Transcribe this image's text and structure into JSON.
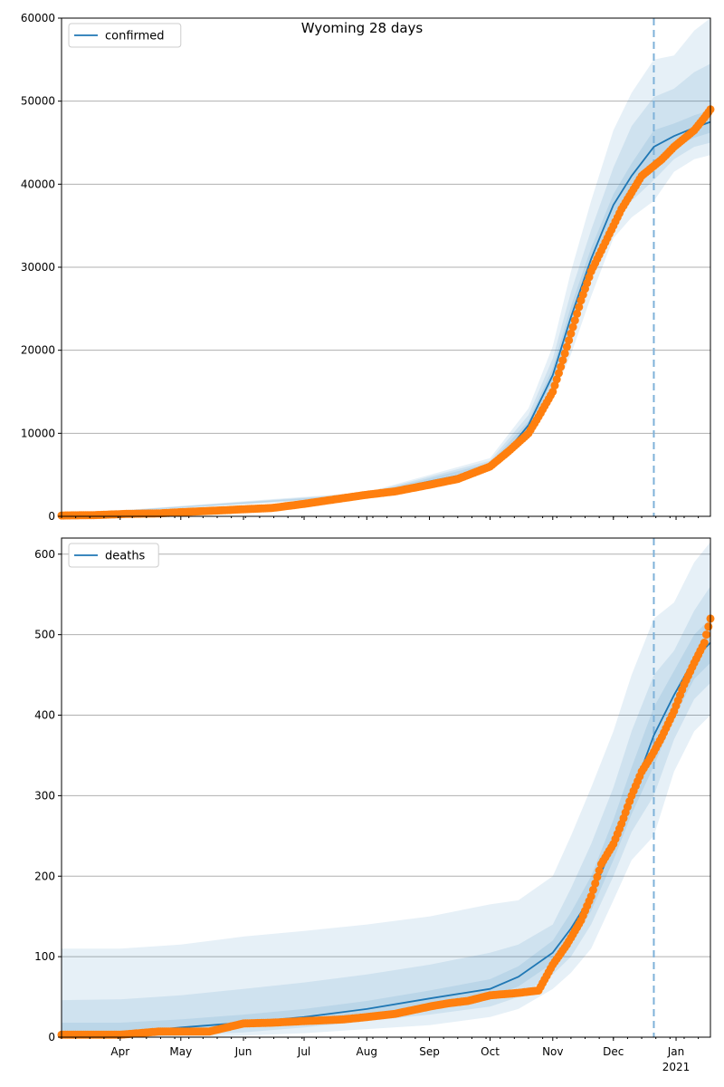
{
  "title": "Wyoming 28 days",
  "colors": {
    "model": "#1f77b4",
    "observed": "#ff7f0e",
    "band": "#1f77b4",
    "grid": "#b0b0b0",
    "forecast_line": "#7fb2d9"
  },
  "chart_data": [
    {
      "type": "line",
      "name": "confirmed-panel",
      "legend": "confirmed",
      "legend_position": "upper-left",
      "grid": "y-only",
      "x_range": [
        "2020-03-03",
        "2021-01-18"
      ],
      "ylim": [
        0,
        60000
      ],
      "yticks": [
        0,
        10000,
        20000,
        30000,
        40000,
        50000,
        60000
      ],
      "forecast_start": "2020-12-21",
      "model": {
        "x": [
          "2020-03-03",
          "2020-04-01",
          "2020-05-01",
          "2020-06-01",
          "2020-07-01",
          "2020-08-01",
          "2020-09-01",
          "2020-09-15",
          "2020-10-01",
          "2020-10-10",
          "2020-10-20",
          "2020-11-01",
          "2020-11-10",
          "2020-11-20",
          "2020-11-25",
          "2020-12-01",
          "2020-12-10",
          "2020-12-21",
          "2020-12-31",
          "2021-01-10",
          "2021-01-18"
        ],
        "y": [
          150,
          250,
          450,
          800,
          1400,
          2600,
          4200,
          4900,
          6200,
          8000,
          11000,
          17000,
          24000,
          31000,
          34000,
          37500,
          41000,
          44500,
          45800,
          46800,
          47500
        ]
      },
      "bands": [
        {
          "x": [
            "2020-03-03",
            "2020-08-01",
            "2020-10-01",
            "2020-10-20",
            "2020-11-01",
            "2020-11-10",
            "2020-11-20",
            "2020-12-01",
            "2020-12-10",
            "2020-12-21",
            "2020-12-31",
            "2021-01-10",
            "2021-01-18"
          ],
          "lower": [
            100,
            2300,
            5500,
            9500,
            14500,
            19500,
            26500,
            33500,
            36000,
            38000,
            41500,
            43000,
            43500
          ],
          "upper": [
            200,
            2900,
            7000,
            13000,
            20500,
            29500,
            38000,
            46500,
            51000,
            55000,
            55500,
            58500,
            60000
          ]
        },
        {
          "x": [
            "2020-03-03",
            "2020-08-01",
            "2020-10-01",
            "2020-10-20",
            "2020-11-01",
            "2020-11-10",
            "2020-11-20",
            "2020-12-01",
            "2020-12-10",
            "2020-12-21",
            "2020-12-31",
            "2021-01-10",
            "2021-01-18"
          ],
          "lower": [
            120,
            2400,
            5800,
            10000,
            15500,
            21500,
            28500,
            35000,
            38000,
            40500,
            43000,
            44500,
            45000
          ],
          "upper": [
            180,
            2800,
            6700,
            12200,
            19000,
            27000,
            34500,
            42000,
            47000,
            50500,
            51500,
            53500,
            54500
          ]
        },
        {
          "x": [
            "2020-03-03",
            "2020-08-01",
            "2020-10-01",
            "2020-10-20",
            "2020-11-01",
            "2020-11-10",
            "2020-11-20",
            "2020-12-01",
            "2020-12-10",
            "2020-12-21",
            "2020-12-31",
            "2021-01-10",
            "2021-01-18"
          ],
          "lower": [
            135,
            2500,
            6000,
            10500,
            16200,
            22800,
            29700,
            36200,
            39500,
            42500,
            44400,
            45600,
            46200
          ],
          "upper": [
            165,
            2700,
            6400,
            11500,
            17900,
            25300,
            32300,
            38800,
            42500,
            46500,
            47300,
            48300,
            48900
          ]
        }
      ],
      "observed": {
        "x": [
          "2020-03-03",
          "2020-03-20",
          "2020-04-05",
          "2020-04-20",
          "2020-05-01",
          "2020-05-15",
          "2020-06-01",
          "2020-06-15",
          "2020-07-01",
          "2020-07-15",
          "2020-08-01",
          "2020-08-15",
          "2020-09-01",
          "2020-09-15",
          "2020-10-01",
          "2020-10-10",
          "2020-10-20",
          "2020-10-25",
          "2020-11-01",
          "2020-11-05",
          "2020-11-10",
          "2020-11-15",
          "2020-11-20",
          "2020-11-25",
          "2020-12-01",
          "2020-12-05",
          "2020-12-10",
          "2020-12-15",
          "2020-12-20",
          "2020-12-25",
          "2020-12-31",
          "2021-01-05",
          "2021-01-10",
          "2021-01-15",
          "2021-01-18"
        ],
        "y": [
          100,
          150,
          300,
          350,
          500,
          650,
          850,
          1000,
          1500,
          2000,
          2600,
          3000,
          3800,
          4500,
          6000,
          7800,
          10000,
          12000,
          15000,
          18000,
          22000,
          26000,
          29500,
          32000,
          35000,
          37000,
          39000,
          41000,
          42000,
          43000,
          44500,
          45500,
          46500,
          48000,
          49000
        ]
      }
    },
    {
      "type": "line",
      "name": "deaths-panel",
      "legend": "deaths",
      "legend_position": "upper-left",
      "grid": "y-only",
      "x_range": [
        "2020-03-03",
        "2021-01-18"
      ],
      "ylim": [
        0,
        620
      ],
      "yticks": [
        0,
        100,
        200,
        300,
        400,
        500,
        600
      ],
      "forecast_start": "2020-12-21",
      "xticks": [
        {
          "date": "2020-04-01",
          "label": "Apr"
        },
        {
          "date": "2020-05-01",
          "label": "May"
        },
        {
          "date": "2020-06-01",
          "label": "Jun"
        },
        {
          "date": "2020-07-01",
          "label": "Jul"
        },
        {
          "date": "2020-08-01",
          "label": "Aug"
        },
        {
          "date": "2020-09-01",
          "label": "Sep"
        },
        {
          "date": "2020-10-01",
          "label": "Oct"
        },
        {
          "date": "2020-11-01",
          "label": "Nov"
        },
        {
          "date": "2020-12-01",
          "label": "Dec"
        },
        {
          "date": "2021-01-01",
          "label": "Jan"
        }
      ],
      "year_label": {
        "date": "2021-01-01",
        "label": "2021"
      },
      "model": {
        "x": [
          "2020-03-03",
          "2020-04-01",
          "2020-05-01",
          "2020-06-01",
          "2020-07-01",
          "2020-08-01",
          "2020-09-01",
          "2020-10-01",
          "2020-10-15",
          "2020-11-01",
          "2020-11-10",
          "2020-11-20",
          "2020-12-01",
          "2020-12-10",
          "2020-12-21",
          "2020-12-31",
          "2021-01-10",
          "2021-01-18"
        ],
        "y": [
          3,
          5,
          12,
          18,
          25,
          35,
          48,
          60,
          75,
          105,
          135,
          175,
          240,
          300,
          375,
          425,
          470,
          490
        ]
      },
      "bands": [
        {
          "x": [
            "2020-03-03",
            "2020-04-01",
            "2020-05-01",
            "2020-06-01",
            "2020-07-01",
            "2020-08-01",
            "2020-09-01",
            "2020-10-01",
            "2020-10-15",
            "2020-11-01",
            "2020-11-10",
            "2020-11-20",
            "2020-12-01",
            "2020-12-10",
            "2020-12-21",
            "2020-12-31",
            "2021-01-10",
            "2021-01-18"
          ],
          "lower": [
            0,
            0,
            0,
            2,
            5,
            10,
            15,
            25,
            35,
            60,
            80,
            110,
            170,
            220,
            250,
            330,
            380,
            400
          ],
          "upper": [
            110,
            110,
            115,
            125,
            132,
            140,
            150,
            165,
            170,
            200,
            250,
            310,
            380,
            450,
            520,
            540,
            590,
            615
          ]
        },
        {
          "x": [
            "2020-03-03",
            "2020-04-01",
            "2020-05-01",
            "2020-06-01",
            "2020-07-01",
            "2020-08-01",
            "2020-09-01",
            "2020-10-01",
            "2020-10-15",
            "2020-11-01",
            "2020-11-10",
            "2020-11-20",
            "2020-12-01",
            "2020-12-10",
            "2020-12-21",
            "2020-12-31",
            "2021-01-10",
            "2021-01-18"
          ],
          "lower": [
            0,
            0,
            2,
            6,
            12,
            20,
            28,
            38,
            50,
            78,
            100,
            140,
            200,
            255,
            300,
            370,
            420,
            440
          ],
          "upper": [
            46,
            47,
            52,
            60,
            68,
            78,
            90,
            105,
            115,
            140,
            185,
            240,
            310,
            380,
            450,
            480,
            530,
            560
          ]
        },
        {
          "x": [
            "2020-03-03",
            "2020-04-01",
            "2020-05-01",
            "2020-06-01",
            "2020-07-01",
            "2020-08-01",
            "2020-09-01",
            "2020-10-01",
            "2020-10-15",
            "2020-11-01",
            "2020-11-10",
            "2020-11-20",
            "2020-12-01",
            "2020-12-10",
            "2020-12-21",
            "2020-12-31",
            "2021-01-10",
            "2021-01-18"
          ],
          "lower": [
            0,
            1,
            6,
            12,
            18,
            27,
            38,
            50,
            63,
            92,
            117,
            157,
            220,
            277,
            337,
            397,
            445,
            465
          ],
          "upper": [
            18,
            18,
            22,
            28,
            35,
            45,
            58,
            72,
            88,
            120,
            155,
            200,
            270,
            335,
            410,
            455,
            500,
            520
          ]
        }
      ],
      "observed": {
        "x": [
          "2020-03-03",
          "2020-04-01",
          "2020-04-20",
          "2020-05-01",
          "2020-05-15",
          "2020-06-01",
          "2020-06-15",
          "2020-07-01",
          "2020-07-20",
          "2020-08-01",
          "2020-08-15",
          "2020-09-01",
          "2020-09-10",
          "2020-09-20",
          "2020-10-01",
          "2020-10-15",
          "2020-10-25",
          "2020-11-01",
          "2020-11-08",
          "2020-11-15",
          "2020-11-20",
          "2020-11-25",
          "2020-12-01",
          "2020-12-05",
          "2020-12-10",
          "2020-12-15",
          "2020-12-20",
          "2020-12-25",
          "2020-12-31",
          "2021-01-05",
          "2021-01-10",
          "2021-01-15",
          "2021-01-18"
        ],
        "y": [
          3,
          3,
          7,
          7,
          7,
          17,
          18,
          20,
          22,
          25,
          29,
          38,
          42,
          45,
          52,
          55,
          58,
          90,
          115,
          145,
          175,
          215,
          240,
          265,
          300,
          330,
          350,
          373,
          405,
          438,
          465,
          490,
          520
        ]
      }
    }
  ]
}
